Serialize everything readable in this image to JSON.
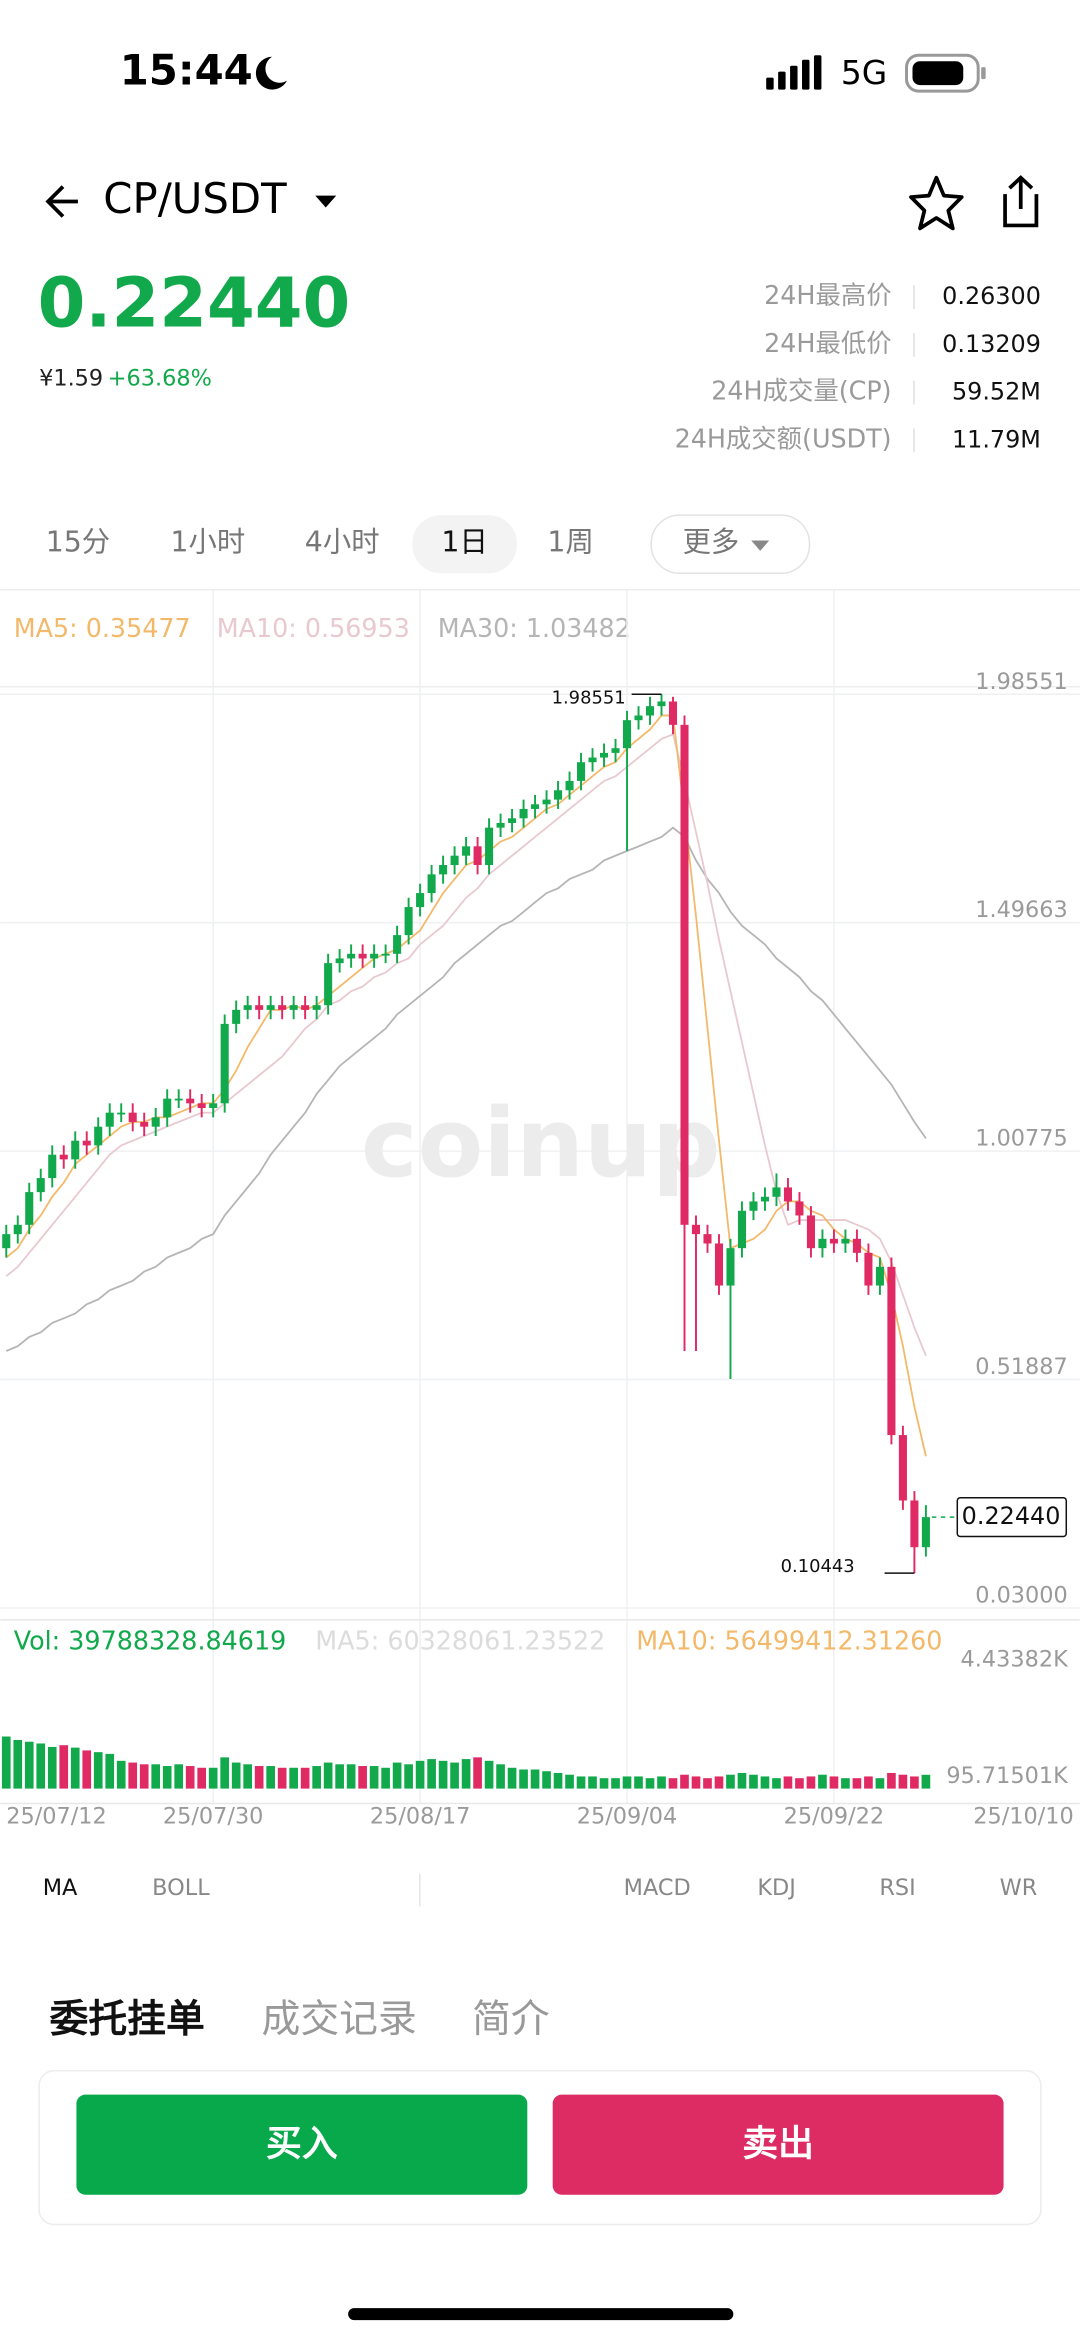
{
  "status_bar": {
    "time": "15:44",
    "network": "5G"
  },
  "header": {
    "pair": "CP/USDT"
  },
  "ticker": {
    "price": "0.22440",
    "cny": "¥1.59",
    "change": "+63.68%",
    "stats": [
      {
        "label": "24H最高价",
        "value": "0.26300"
      },
      {
        "label": "24H最低价",
        "value": "0.13209"
      },
      {
        "label": "24H成交量(CP)",
        "value": "59.52M"
      },
      {
        "label": "24H成交额(USDT)",
        "value": "11.79M"
      }
    ]
  },
  "timeframes": [
    "15分",
    "1小时",
    "4小时",
    "1日",
    "1周",
    "更多"
  ],
  "chart_data": {
    "type": "candlestick",
    "watermark": "coinup",
    "up_color": "#12a94c",
    "down_color": "#df2a63",
    "grid": true,
    "open": [
      0.8,
      0.83,
      0.85,
      0.92,
      0.95,
      1.0,
      0.99,
      1.03,
      1.02,
      1.06,
      1.09,
      1.09,
      1.07,
      1.06,
      1.08,
      1.12,
      1.12,
      1.11,
      1.1,
      1.11,
      1.28,
      1.31,
      1.32,
      1.31,
      1.32,
      1.31,
      1.32,
      1.31,
      1.32,
      1.41,
      1.42,
      1.43,
      1.42,
      1.43,
      1.43,
      1.47,
      1.53,
      1.56,
      1.6,
      1.62,
      1.64,
      1.66,
      1.62,
      1.7,
      1.71,
      1.72,
      1.74,
      1.75,
      1.76,
      1.78,
      1.8,
      1.84,
      1.85,
      1.86,
      1.87,
      1.93,
      1.94,
      1.96,
      1.97,
      1.92,
      0.85,
      0.83,
      0.81,
      0.72,
      0.8,
      0.88,
      0.9,
      0.91,
      0.93,
      0.9,
      0.87,
      0.8,
      0.82,
      0.81,
      0.82,
      0.79,
      0.72,
      0.76,
      0.4,
      0.26,
      0.16
    ],
    "high": [
      0.85,
      0.87,
      0.94,
      0.97,
      1.02,
      1.02,
      1.05,
      1.05,
      1.08,
      1.11,
      1.11,
      1.11,
      1.09,
      1.1,
      1.14,
      1.14,
      1.14,
      1.13,
      1.13,
      1.3,
      1.33,
      1.34,
      1.34,
      1.34,
      1.34,
      1.34,
      1.34,
      1.34,
      1.43,
      1.44,
      1.45,
      1.45,
      1.45,
      1.45,
      1.49,
      1.55,
      1.58,
      1.62,
      1.64,
      1.66,
      1.68,
      1.68,
      1.72,
      1.73,
      1.74,
      1.76,
      1.77,
      1.78,
      1.8,
      1.82,
      1.86,
      1.87,
      1.88,
      1.89,
      1.95,
      1.96,
      1.98,
      1.98551,
      1.98,
      1.94,
      0.87,
      0.85,
      0.83,
      0.82,
      0.9,
      0.92,
      0.93,
      0.96,
      0.95,
      0.92,
      0.89,
      0.84,
      0.84,
      0.84,
      0.84,
      0.81,
      0.78,
      0.78,
      0.42,
      0.28,
      0.25
    ],
    "low": [
      0.78,
      0.81,
      0.83,
      0.9,
      0.93,
      0.97,
      0.97,
      1.0,
      1.0,
      1.04,
      1.07,
      1.05,
      1.04,
      1.04,
      1.06,
      1.1,
      1.09,
      1.08,
      1.08,
      1.09,
      1.26,
      1.29,
      1.29,
      1.29,
      1.29,
      1.29,
      1.29,
      1.29,
      1.3,
      1.39,
      1.4,
      1.4,
      1.4,
      1.41,
      1.41,
      1.45,
      1.51,
      1.54,
      1.58,
      1.6,
      1.62,
      1.6,
      1.6,
      1.68,
      1.69,
      1.7,
      1.72,
      1.73,
      1.74,
      1.76,
      1.78,
      1.82,
      1.83,
      1.84,
      1.65,
      1.91,
      1.92,
      1.94,
      1.9,
      0.58,
      0.58,
      0.79,
      0.7,
      0.52,
      0.78,
      0.86,
      0.88,
      0.89,
      0.88,
      0.85,
      0.78,
      0.78,
      0.79,
      0.79,
      0.77,
      0.7,
      0.7,
      0.38,
      0.24,
      0.10443,
      0.14
    ],
    "close": [
      0.83,
      0.85,
      0.92,
      0.95,
      1.0,
      0.99,
      1.03,
      1.02,
      1.06,
      1.09,
      1.09,
      1.07,
      1.06,
      1.08,
      1.12,
      1.12,
      1.11,
      1.1,
      1.11,
      1.28,
      1.31,
      1.32,
      1.31,
      1.32,
      1.31,
      1.32,
      1.31,
      1.32,
      1.41,
      1.42,
      1.43,
      1.42,
      1.43,
      1.43,
      1.47,
      1.53,
      1.56,
      1.6,
      1.62,
      1.64,
      1.66,
      1.62,
      1.7,
      1.71,
      1.72,
      1.74,
      1.75,
      1.76,
      1.78,
      1.8,
      1.84,
      1.85,
      1.86,
      1.87,
      1.93,
      1.94,
      1.96,
      1.97,
      1.92,
      0.85,
      0.83,
      0.81,
      0.72,
      0.8,
      0.88,
      0.9,
      0.91,
      0.93,
      0.9,
      0.87,
      0.8,
      0.82,
      0.81,
      0.82,
      0.79,
      0.72,
      0.76,
      0.4,
      0.26,
      0.16,
      0.2244
    ],
    "series": [
      {
        "name": "MA5: 0.35477",
        "color": "#f3b96a",
        "values": [
          0.78,
          0.8,
          0.84,
          0.87,
          0.91,
          0.94,
          0.98,
          1.0,
          1.02,
          1.04,
          1.06,
          1.07,
          1.07,
          1.08,
          1.08,
          1.09,
          1.1,
          1.11,
          1.11,
          1.14,
          1.18,
          1.23,
          1.27,
          1.31,
          1.31,
          1.32,
          1.31,
          1.32,
          1.34,
          1.36,
          1.38,
          1.4,
          1.42,
          1.43,
          1.44,
          1.46,
          1.48,
          1.52,
          1.56,
          1.59,
          1.62,
          1.63,
          1.65,
          1.67,
          1.68,
          1.7,
          1.72,
          1.74,
          1.75,
          1.77,
          1.79,
          1.81,
          1.83,
          1.84,
          1.87,
          1.89,
          1.91,
          1.94,
          1.94,
          1.73,
          1.51,
          1.27,
          1.03,
          0.8,
          0.81,
          0.82,
          0.84,
          0.88,
          0.9,
          0.9,
          0.88,
          0.87,
          0.84,
          0.82,
          0.81,
          0.79,
          0.78,
          0.7,
          0.59,
          0.46,
          0.35477
        ]
      },
      {
        "name": "MA10: 0.56953",
        "color": "#e8c9cf",
        "values": [
          0.74,
          0.76,
          0.79,
          0.82,
          0.85,
          0.88,
          0.91,
          0.94,
          0.97,
          1.0,
          1.02,
          1.03,
          1.04,
          1.05,
          1.06,
          1.07,
          1.08,
          1.09,
          1.09,
          1.11,
          1.13,
          1.15,
          1.17,
          1.19,
          1.21,
          1.24,
          1.27,
          1.29,
          1.32,
          1.33,
          1.35,
          1.36,
          1.38,
          1.39,
          1.41,
          1.42,
          1.45,
          1.47,
          1.49,
          1.52,
          1.55,
          1.57,
          1.6,
          1.62,
          1.64,
          1.66,
          1.68,
          1.7,
          1.72,
          1.74,
          1.76,
          1.78,
          1.8,
          1.81,
          1.83,
          1.85,
          1.87,
          1.89,
          1.9,
          1.8,
          1.69,
          1.58,
          1.46,
          1.35,
          1.24,
          1.13,
          1.02,
          0.92,
          0.85,
          0.86,
          0.86,
          0.86,
          0.86,
          0.86,
          0.85,
          0.84,
          0.82,
          0.77,
          0.7,
          0.63,
          0.56953
        ]
      },
      {
        "name": "MA30: 1.03482",
        "color": "#b5b5b5",
        "values": [
          0.58,
          0.59,
          0.61,
          0.62,
          0.64,
          0.65,
          0.66,
          0.68,
          0.69,
          0.71,
          0.72,
          0.73,
          0.75,
          0.76,
          0.78,
          0.79,
          0.8,
          0.82,
          0.83,
          0.87,
          0.9,
          0.93,
          0.96,
          1.0,
          1.03,
          1.06,
          1.09,
          1.13,
          1.16,
          1.19,
          1.21,
          1.23,
          1.25,
          1.27,
          1.3,
          1.32,
          1.34,
          1.36,
          1.38,
          1.41,
          1.43,
          1.45,
          1.47,
          1.49,
          1.5,
          1.52,
          1.54,
          1.56,
          1.57,
          1.59,
          1.6,
          1.61,
          1.63,
          1.64,
          1.65,
          1.66,
          1.67,
          1.68,
          1.7,
          1.68,
          1.63,
          1.59,
          1.56,
          1.52,
          1.49,
          1.47,
          1.45,
          1.42,
          1.4,
          1.38,
          1.35,
          1.33,
          1.3,
          1.27,
          1.24,
          1.21,
          1.18,
          1.15,
          1.11,
          1.07,
          1.03482
        ]
      }
    ],
    "ylim": [
      0.03,
      1.98551
    ],
    "yticks": [
      {
        "value": 0.03,
        "label": "0.03000"
      },
      0.51887,
      1.00775,
      1.49663,
      1.98551
    ],
    "xlim": [
      -0.52,
      93.38
    ],
    "xticks": [
      {
        "value": 0,
        "label": "25/07/12"
      },
      {
        "value": 18,
        "label": "25/07/30"
      },
      {
        "value": 36,
        "label": "25/08/17"
      },
      {
        "value": 54,
        "label": "25/09/04"
      },
      {
        "value": 72,
        "label": "25/09/22"
      },
      {
        "value": 90,
        "label": "25/10/10"
      }
    ],
    "high_label": "1.98551",
    "low_label": "0.10443",
    "last_price_label": "0.22440",
    "volume": {
      "ylim": [
        0,
        400000000
      ],
      "values": [
        150000000,
        140000000,
        135000000,
        130000000,
        120000000,
        125000000,
        118000000,
        110000000,
        105000000,
        100000000,
        80000000,
        75000000,
        70000000,
        70000000,
        65000000,
        70000000,
        65000000,
        60000000,
        60000000,
        90000000,
        75000000,
        70000000,
        65000000,
        65000000,
        60000000,
        60000000,
        60000000,
        65000000,
        75000000,
        70000000,
        70000000,
        65000000,
        65000000,
        60000000,
        75000000,
        70000000,
        80000000,
        85000000,
        80000000,
        75000000,
        85000000,
        90000000,
        80000000,
        70000000,
        60000000,
        55000000,
        55000000,
        50000000,
        45000000,
        40000000,
        35000000,
        35000000,
        30000000,
        30000000,
        35000000,
        35000000,
        30000000,
        35000000,
        30000000,
        40000000,
        35000000,
        30000000,
        35000000,
        40000000,
        45000000,
        40000000,
        35000000,
        30000000,
        35000000,
        30000000,
        35000000,
        40000000,
        35000000,
        30000000,
        30000000,
        35000000,
        30000000,
        45000000,
        40000000,
        35000000,
        39788328.84619
      ],
      "labels": [
        {
          "text": "Vol: 39788328.84619",
          "color": "#12a94c"
        },
        {
          "text": "MA5: 60328061.23522",
          "color": "#dcdcdc"
        },
        {
          "text": "MA10: 56499412.31260",
          "color": "#f3b96a"
        }
      ],
      "axis_labels": [
        "4.43382K",
        "95.71501K"
      ]
    }
  },
  "indicators": [
    "MA",
    "BOLL",
    "MACD",
    "KDJ",
    "RSI",
    "WR"
  ],
  "tabs": [
    "委托挂单",
    "成交记录",
    "简介"
  ],
  "buttons": {
    "buy": "买入",
    "sell": "卖出"
  }
}
